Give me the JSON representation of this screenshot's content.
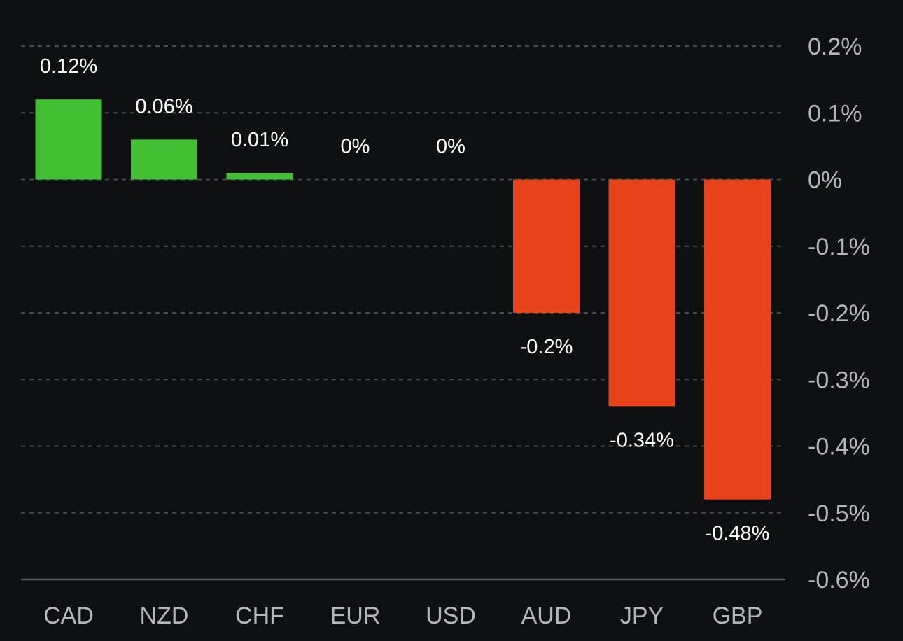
{
  "chart_data": {
    "type": "bar",
    "categories": [
      "CAD",
      "NZD",
      "CHF",
      "EUR",
      "USD",
      "AUD",
      "JPY",
      "GBP"
    ],
    "values": [
      0.12,
      0.06,
      0.01,
      0,
      0,
      -0.2,
      -0.34,
      -0.48
    ],
    "value_labels": [
      "0.12%",
      "0.06%",
      "0.01%",
      "0%",
      "0%",
      "-0.2%",
      "-0.34%",
      "-0.48%"
    ],
    "ylim": [
      -0.6,
      0.2
    ],
    "yticks": [
      0.2,
      0.1,
      0,
      -0.1,
      -0.2,
      -0.3,
      -0.4,
      -0.5,
      -0.6
    ],
    "ytick_labels": [
      "0.2%",
      "0.1%",
      "0%",
      "-0.1%",
      "-0.2%",
      "-0.3%",
      "-0.4%",
      "-0.5%",
      "-0.6%"
    ],
    "y_axis_side": "right",
    "grid": true,
    "grid_style": "dashed",
    "colors": {
      "positive": "#43bf33",
      "negative": "#e8421a",
      "background": "#0f1012",
      "grid": "#4a4c52",
      "baseline": "#5a5c62",
      "tick_text": "#b4b6bc",
      "value_text": "#ffffff"
    }
  }
}
